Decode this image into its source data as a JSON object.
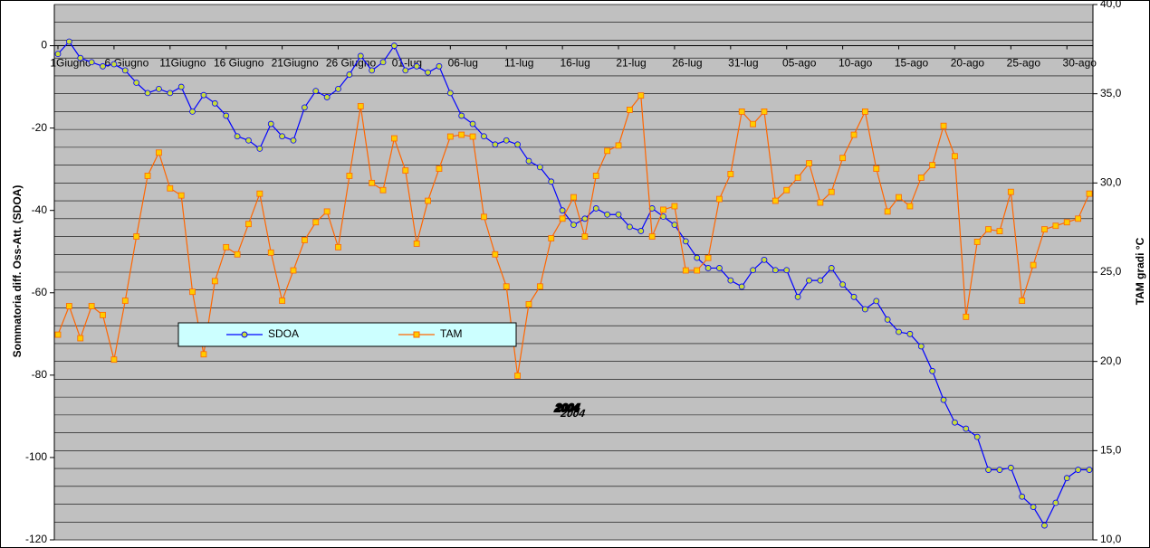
{
  "chart_data": {
    "type": "line",
    "categories": [
      "1Giugno",
      null,
      null,
      null,
      null,
      "6 Giugno",
      null,
      null,
      null,
      null,
      "11Giugno",
      null,
      null,
      null,
      null,
      "16 Giugno",
      null,
      null,
      null,
      null,
      "21Giugno",
      null,
      null,
      null,
      null,
      "26 Giugno",
      null,
      null,
      null,
      null,
      "01-lug",
      null,
      null,
      null,
      null,
      "06-lug",
      null,
      null,
      null,
      null,
      "11-lug",
      null,
      null,
      null,
      null,
      "16-lug",
      null,
      null,
      null,
      null,
      "21-lug",
      null,
      null,
      null,
      null,
      "26-lug",
      null,
      null,
      null,
      null,
      "31-lug",
      null,
      null,
      null,
      null,
      "05-ago",
      null,
      null,
      null,
      null,
      "10-ago",
      null,
      null,
      null,
      null,
      "15-ago",
      null,
      null,
      null,
      null,
      "20-ago",
      null,
      null,
      null,
      null,
      "25-ago",
      null,
      null,
      null,
      null,
      "30-ago",
      null,
      null
    ],
    "series": [
      {
        "name": "SDOA",
        "color": "#0000ff",
        "marker_color": "#c8dc3c",
        "values": [
          -2,
          1,
          -3,
          -4,
          -5,
          -4.5,
          -6,
          -9,
          -11.5,
          -10.5,
          -11.5,
          -10,
          -16,
          -12,
          -14,
          -17,
          -22,
          -23,
          -25,
          -19,
          -22,
          -23,
          -15,
          -11,
          -12.5,
          -10.5,
          -7,
          -2.5,
          -6,
          -4,
          0,
          -6,
          -5,
          -6.5,
          -5,
          -11.5,
          -17,
          -19,
          -22,
          -24,
          -23,
          -24,
          -28,
          -29.5,
          -33,
          -40,
          -43.5,
          -42,
          -39.5,
          -41,
          -41,
          -44,
          -45,
          -39.5,
          -41.5,
          -43.5,
          -47.5,
          -51.5,
          -54,
          -54,
          -57,
          -58.5,
          -54.5,
          -52,
          -54.5,
          -54.5,
          -61,
          -57,
          -57,
          -54,
          -58,
          -61,
          -64,
          -62,
          -66.5,
          -69.5,
          -70,
          -73,
          -79,
          -86,
          -91.5,
          -93,
          -95,
          -103,
          -103,
          -102.5,
          -109.5,
          -112,
          -116.5,
          -111,
          -105,
          -103,
          -103
        ]
      },
      {
        "name": "TAM",
        "color": "#ff6600",
        "marker_color": "#ffcc00",
        "axis": "y2",
        "values": [
          21.5,
          23.1,
          21.3,
          23.1,
          22.6,
          20.1,
          23.4,
          27.0,
          30.4,
          31.7,
          29.7,
          29.3,
          23.9,
          20.4,
          24.5,
          26.4,
          26.0,
          27.7,
          29.4,
          26.1,
          23.4,
          25.1,
          26.8,
          27.8,
          28.4,
          26.4,
          30.4,
          34.3,
          30.0,
          29.6,
          32.5,
          30.7,
          26.6,
          29.0,
          30.8,
          32.6,
          32.7,
          32.6,
          28.1,
          26.0,
          24.2,
          19.2,
          23.2,
          24.2,
          26.9,
          28.0,
          29.2,
          27.0,
          30.4,
          31.8,
          32.1,
          34.1,
          34.9,
          27.0,
          28.5,
          28.7,
          25.1,
          25.1,
          25.8,
          29.1,
          30.5,
          34.0,
          33.3,
          34.0,
          29.0,
          29.6,
          30.3,
          31.1,
          28.9,
          29.5,
          31.4,
          32.7,
          34.0,
          30.8,
          28.4,
          29.2,
          28.7,
          30.3,
          31.0,
          33.2,
          31.5,
          22.5,
          26.7,
          27.4,
          27.3,
          29.5,
          23.4,
          25.4,
          27.4,
          27.6,
          27.8,
          28.0,
          29.4
        ]
      }
    ],
    "y_label": "Sommatoria diff. Oss-Att. (SDOA)",
    "y2_label": "TAM gradi °C",
    "annotation": "2004",
    "ylim": [
      -120,
      10
    ],
    "yticks": [
      0,
      -20,
      -40,
      -60,
      -80,
      -100,
      -120
    ],
    "y2lim": [
      10,
      40
    ],
    "y2ticks": [
      {
        "value": 40,
        "label": "40,0"
      },
      {
        "value": 35,
        "label": "35,0"
      },
      {
        "value": 30,
        "label": "30,0"
      },
      {
        "value": 25,
        "label": "25,0"
      },
      {
        "value": 20,
        "label": "20,0"
      },
      {
        "value": 15,
        "label": "15,0"
      },
      {
        "value": 10,
        "label": "10,0"
      }
    ],
    "y2grid": [
      10,
      11,
      12,
      13,
      14,
      15,
      16,
      17,
      18,
      19,
      20,
      21,
      22,
      23,
      24,
      25,
      26,
      27,
      28,
      29,
      30,
      31,
      32,
      33,
      34,
      35,
      36,
      37,
      38,
      39,
      40
    ],
    "plot_color": "#c0c0c0",
    "legend_color": "#ccffff"
  }
}
